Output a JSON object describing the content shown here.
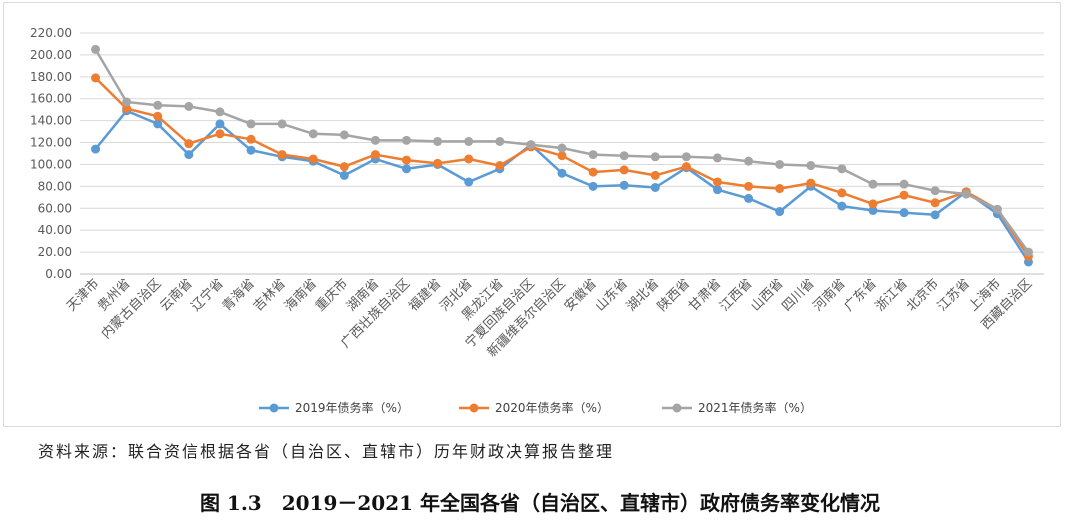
{
  "chart_data": {
    "type": "line",
    "title": "",
    "xlabel": "",
    "ylabel": "",
    "ylim": [
      0,
      220
    ],
    "yticks": [
      "0.00",
      "20.00",
      "40.00",
      "60.00",
      "80.00",
      "100.00",
      "120.00",
      "140.00",
      "160.00",
      "180.00",
      "200.00",
      "220.00"
    ],
    "grid": true,
    "legend_position": "bottom",
    "categories": [
      "天津市",
      "贵州省",
      "内蒙古自治区",
      "云南省",
      "辽宁省",
      "青海省",
      "吉林省",
      "海南省",
      "重庆市",
      "湖南省",
      "广西壮族自治区",
      "福建省",
      "河北省",
      "黑龙江省",
      "宁夏回族自治区",
      "新疆维吾尔自治区",
      "安徽省",
      "山东省",
      "湖北省",
      "陕西省",
      "甘肃省",
      "江西省",
      "山西省",
      "四川省",
      "河南省",
      "广东省",
      "浙江省",
      "北京市",
      "江苏省",
      "上海市",
      "西藏自治区"
    ],
    "series": [
      {
        "name": "2019年债务率（%）",
        "color": "#5b9bd5",
        "values": [
          114,
          149,
          137,
          109,
          137,
          113,
          107,
          103,
          90,
          105,
          96,
          100,
          84,
          96,
          118,
          92,
          80,
          81,
          79,
          97,
          77,
          69,
          57,
          80,
          62,
          58,
          56,
          54,
          75,
          55,
          11
        ]
      },
      {
        "name": "2020年债务率（%）",
        "color": "#ed7d31",
        "values": [
          179,
          151,
          144,
          119,
          128,
          123,
          109,
          105,
          98,
          109,
          104,
          101,
          105,
          99,
          116,
          108,
          93,
          95,
          90,
          98,
          84,
          80,
          78,
          83,
          74,
          64,
          72,
          65,
          75,
          59,
          16
        ]
      },
      {
        "name": "2021年债务率（%）",
        "color": "#a5a5a5",
        "values": [
          205,
          157,
          154,
          153,
          148,
          137,
          137,
          128,
          127,
          122,
          122,
          121,
          121,
          121,
          118,
          115,
          109,
          108,
          107,
          107,
          106,
          103,
          100,
          99,
          96,
          82,
          82,
          76,
          73,
          59,
          20
        ]
      }
    ]
  },
  "source_note": "资料来源：联合资信根据各省（自治区、直辖市）历年财政决算报告整理",
  "caption": "图 1.3　2019－2021 年全国各省（自治区、直辖市）政府债务率变化情况"
}
